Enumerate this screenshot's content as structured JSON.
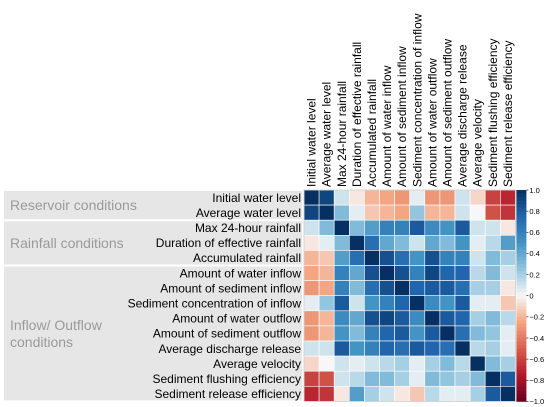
{
  "chart_data": {
    "type": "heatmap",
    "title": "",
    "columns": [
      "Initial water level",
      "Average water level",
      "Max 24-hour rainfall",
      "Duration of effective rainfall",
      "Accumulated rainfall",
      "Amount of water inflow",
      "Amount of sediment inflow",
      "Sediment concentration of inflow",
      "Amount of water outflow",
      "Amount of sediment outflow",
      "Average discharge release",
      "Average velocity",
      "Sediment flushing efficiency",
      "Sediment release efficiency"
    ],
    "rows": [
      "Initial water level",
      "Average water level",
      "Max 24-hour rainfall",
      "Duration of effective rainfall",
      "Accumulated rainfall",
      "Amount of water inflow",
      "Amount of sediment inflow",
      "Sediment concentration of inflow",
      "Amount of water outflow",
      "Amount of sediment outflow",
      "Average discharge release",
      "Average velocity",
      "Sediment flushing efficiency",
      "Sediment release efficiency"
    ],
    "groups": [
      {
        "label": "Reservoir conditions",
        "rows": [
          0,
          1
        ]
      },
      {
        "label": "Rainfall conditions",
        "rows": [
          2,
          4
        ]
      },
      {
        "label": "Inflow/ Outflow conditions",
        "rows": [
          5,
          13
        ]
      }
    ],
    "values": [
      [
        1,
        0.9,
        0.1,
        -0.05,
        -0.2,
        -0.25,
        -0.3,
        0.05,
        -0.3,
        -0.3,
        0.1,
        -0.1,
        -0.6,
        -0.7
      ],
      [
        0.9,
        1,
        0.3,
        0.05,
        -0.15,
        -0.2,
        -0.25,
        0.25,
        -0.2,
        -0.2,
        0.1,
        0,
        -0.55,
        -0.65
      ],
      [
        0.1,
        0.3,
        1,
        0.3,
        0.45,
        0.6,
        0.6,
        0.8,
        0.55,
        0.5,
        0.8,
        0.1,
        0.1,
        -0.05
      ],
      [
        -0.05,
        0.05,
        0.3,
        1,
        0.7,
        0.4,
        0.3,
        0.1,
        0.4,
        0.3,
        0.5,
        0.05,
        0.15,
        0.45
      ],
      [
        -0.2,
        -0.15,
        0.45,
        0.7,
        1,
        0.85,
        0.7,
        0.5,
        0.85,
        0.6,
        0.6,
        0.1,
        0.3,
        0.2
      ],
      [
        -0.25,
        -0.2,
        0.6,
        0.4,
        0.85,
        1,
        0.85,
        0.6,
        0.9,
        0.75,
        0.75,
        0.15,
        0.3,
        0.1
      ],
      [
        -0.3,
        -0.25,
        0.6,
        0.3,
        0.7,
        0.85,
        1,
        0.75,
        0.8,
        0.8,
        0.7,
        0.2,
        0.2,
        -0.05
      ],
      [
        0.05,
        0.25,
        0.8,
        0.1,
        0.5,
        0.6,
        0.75,
        1,
        0.55,
        0.5,
        0.8,
        0.05,
        0.05,
        -0.15
      ],
      [
        -0.3,
        -0.2,
        0.55,
        0.4,
        0.85,
        0.9,
        0.8,
        0.55,
        1,
        0.8,
        0.75,
        0.2,
        0.3,
        0.15
      ],
      [
        -0.3,
        -0.2,
        0.5,
        0.3,
        0.6,
        0.75,
        0.8,
        0.5,
        0.8,
        1,
        0.7,
        0.3,
        0.25,
        0.05
      ],
      [
        0.1,
        0.1,
        0.8,
        0.5,
        0.6,
        0.75,
        0.7,
        0.8,
        0.75,
        0.7,
        1,
        0.15,
        0.2,
        0.05
      ],
      [
        -0.1,
        0,
        0.1,
        0.05,
        0.1,
        0.15,
        0.2,
        0.05,
        0.2,
        0.3,
        0.15,
        1,
        0.3,
        0.2
      ],
      [
        -0.6,
        -0.55,
        0.1,
        0.15,
        0.3,
        0.3,
        0.2,
        0.05,
        0.3,
        0.25,
        0.2,
        0.3,
        1,
        0.8
      ],
      [
        -0.7,
        -0.65,
        -0.05,
        0.45,
        0.2,
        0.1,
        -0.05,
        -0.15,
        0.15,
        0.05,
        0.05,
        0.2,
        0.8,
        1
      ]
    ],
    "colorbar": {
      "min": -1,
      "max": 1,
      "ticks": [
        1.0,
        0.8,
        0.6,
        0.4,
        0.2,
        0,
        -0.2,
        -0.4,
        -0.6,
        -0.8,
        -1.0
      ],
      "tick_labels": [
        "1.0",
        "0.8",
        "0.6",
        "0.4",
        "0.2",
        "0",
        "−0.2",
        "−0.4",
        "−0.6",
        "−0.8",
        "−1.0"
      ],
      "low_color": "#67001f",
      "mid_color": "#f7f7f7",
      "high_color": "#053061"
    },
    "group_band_color": "#e6e6e6"
  }
}
